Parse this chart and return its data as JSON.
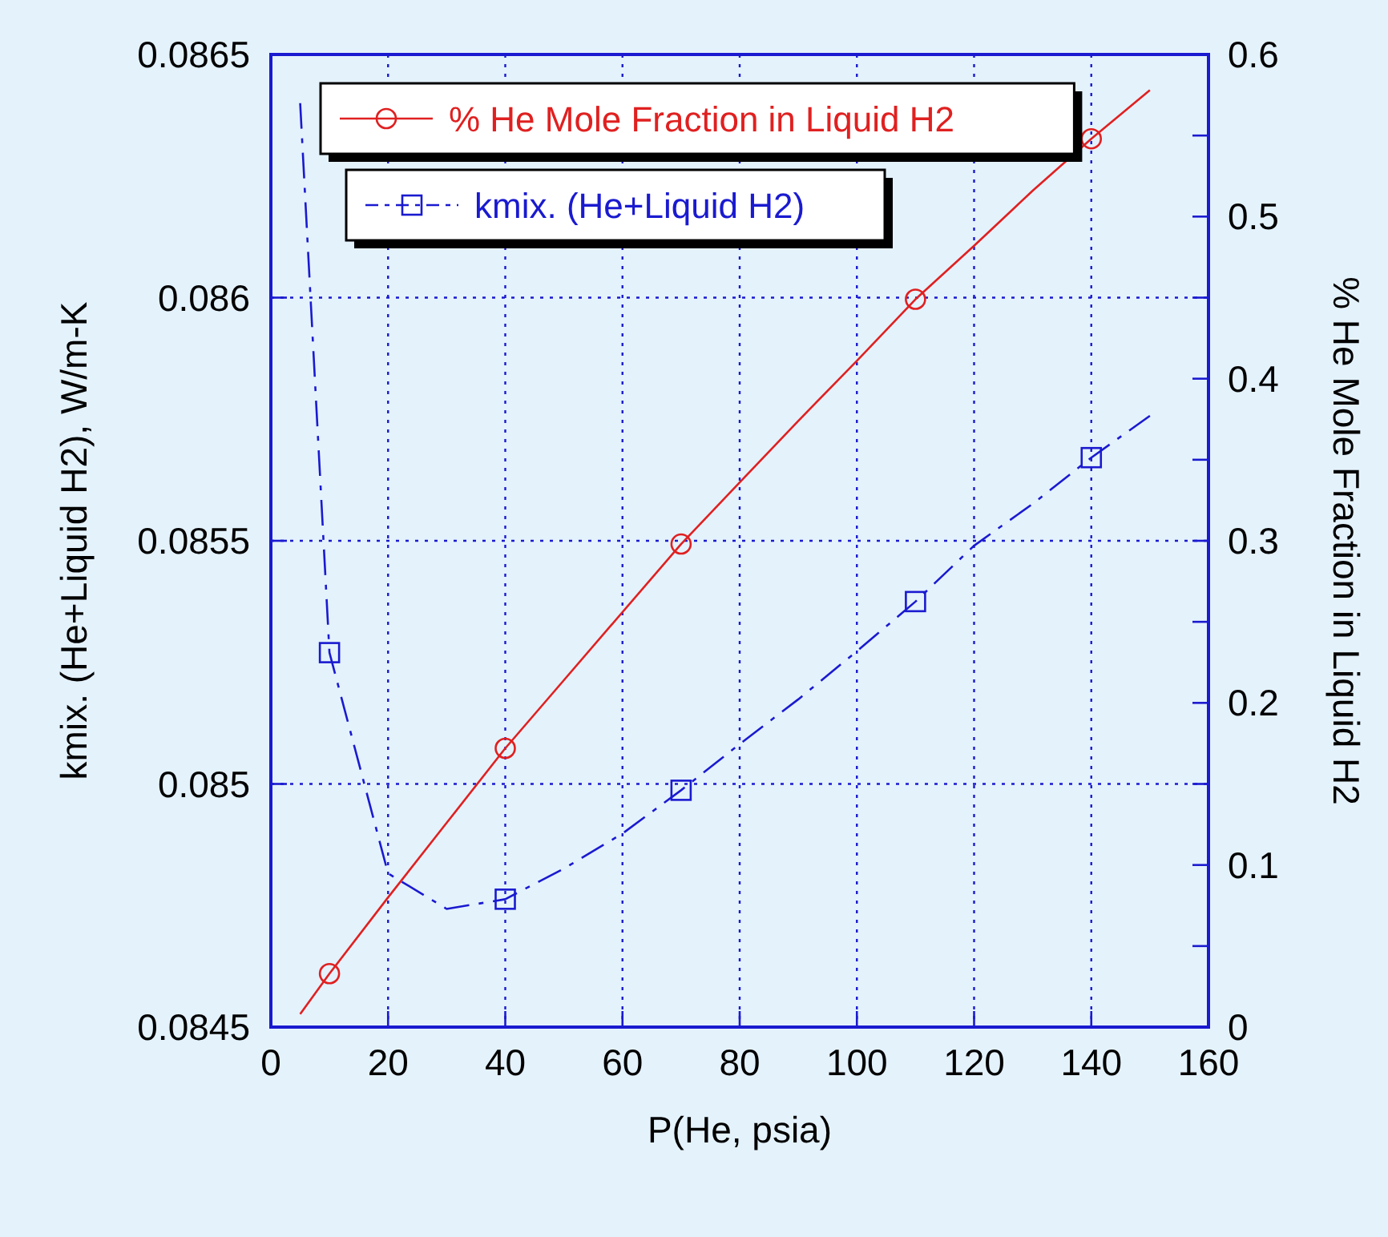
{
  "chart_data": {
    "type": "line",
    "xlabel": "P(He, psia)",
    "ylabel": "kmix. (He+Liquid H2), W/m-K",
    "y2label": "% He Mole Fraction in Liquid H2",
    "xlim": [
      0,
      160
    ],
    "xticks": [
      0,
      20,
      40,
      60,
      80,
      100,
      120,
      140,
      160
    ],
    "ylim": [
      0.0845,
      0.0865
    ],
    "yticks": [
      0.0845,
      0.085,
      0.0855,
      0.086,
      0.0865
    ],
    "y2lim": [
      0,
      0.6
    ],
    "y2ticks": [
      0,
      {
        "value": 0.05,
        "label": null
      },
      0.1,
      {
        "value": 0.15,
        "label": null
      },
      0.2,
      {
        "value": 0.25,
        "label": null
      },
      0.3,
      {
        "value": 0.35,
        "label": null
      },
      0.4,
      {
        "value": 0.45,
        "label": null
      },
      0.5,
      {
        "value": 0.55,
        "label": null
      },
      0.6
    ],
    "grid": true,
    "legend": "top left",
    "series": [
      {
        "name": "% He Mole Fraction in Liquid H2",
        "color": "#e02020",
        "axis": "y2",
        "line_style": "solid",
        "x": [
          5,
          10,
          20,
          30,
          40,
          50,
          60,
          70,
          80,
          90,
          100,
          110,
          120,
          130,
          140,
          150
        ],
        "values": [
          0.008,
          0.033,
          0.08,
          0.126,
          0.172,
          0.214,
          0.256,
          0.298,
          0.336,
          0.374,
          0.411,
          0.449,
          0.482,
          0.516,
          0.548,
          0.578
        ]
      },
      {
        "type": "scatter",
        "color": "#e02020",
        "axis": "y2",
        "marker": "circle",
        "x": [
          10,
          40,
          70,
          110,
          140
        ],
        "values": [
          0.033,
          0.172,
          0.298,
          0.449,
          0.548
        ]
      },
      {
        "name": "kmix. (He+Liquid H2)",
        "color": "#1a1ad0",
        "axis": "y",
        "line_style": "dashed",
        "x": [
          5,
          10,
          20,
          30,
          40,
          50,
          60,
          70,
          80,
          90,
          100,
          110,
          120,
          130,
          140,
          150
        ],
        "values": [
          0.0864,
          0.08527,
          0.084816,
          0.084743,
          0.084763,
          0.084826,
          0.084898,
          0.084987,
          0.085082,
          0.085174,
          0.085273,
          0.085375,
          0.08549,
          0.085576,
          0.085671,
          0.085757
        ]
      },
      {
        "type": "scatter",
        "color": "#1a1ad0",
        "axis": "y",
        "marker": "square",
        "x": [
          10,
          40,
          70,
          110,
          140
        ],
        "values": [
          0.08527,
          0.084763,
          0.084987,
          0.085375,
          0.085671
        ]
      }
    ]
  }
}
